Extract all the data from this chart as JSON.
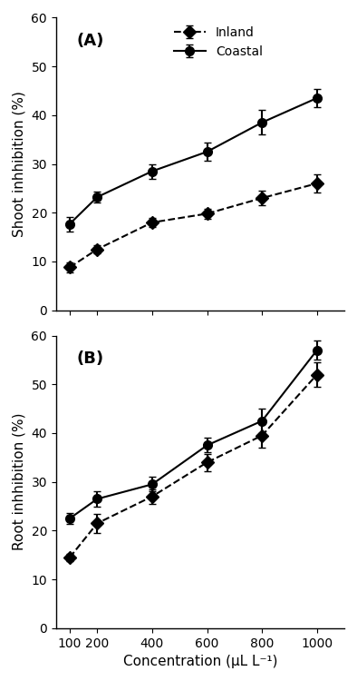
{
  "x": [
    100,
    200,
    400,
    600,
    800,
    1000
  ],
  "shoot_inland_y": [
    8.8,
    12.5,
    18.0,
    19.8,
    23.0,
    26.0
  ],
  "shoot_inland_err": [
    1.0,
    0.8,
    1.0,
    1.0,
    1.5,
    1.8
  ],
  "shoot_coastal_y": [
    17.7,
    23.2,
    28.5,
    32.5,
    38.5,
    43.5
  ],
  "shoot_coastal_err": [
    1.5,
    1.2,
    1.5,
    1.8,
    2.5,
    1.8
  ],
  "root_inland_y": [
    14.5,
    21.5,
    27.0,
    34.0,
    39.5,
    52.0
  ],
  "root_inland_err": [
    0.8,
    2.0,
    1.5,
    1.8,
    2.5,
    2.5
  ],
  "root_coastal_y": [
    22.5,
    26.5,
    29.5,
    37.5,
    42.5,
    57.0
  ],
  "root_coastal_err": [
    1.2,
    1.5,
    1.5,
    1.5,
    2.5,
    2.0
  ],
  "xlabel": "Concentration (μL L⁻¹)",
  "ylabel_A": "Shoot inhhibition (%)",
  "ylabel_B": "Root inhhibition (%)",
  "label_A": "(A)",
  "label_B": "(B)",
  "inland_label": "Inland",
  "coastal_label": "Coastal",
  "ylim": [
    0,
    60
  ],
  "yticks": [
    0,
    10,
    20,
    30,
    40,
    50,
    60
  ],
  "color": "#000000",
  "linewidth": 1.5,
  "markersize": 7,
  "capsize": 3
}
